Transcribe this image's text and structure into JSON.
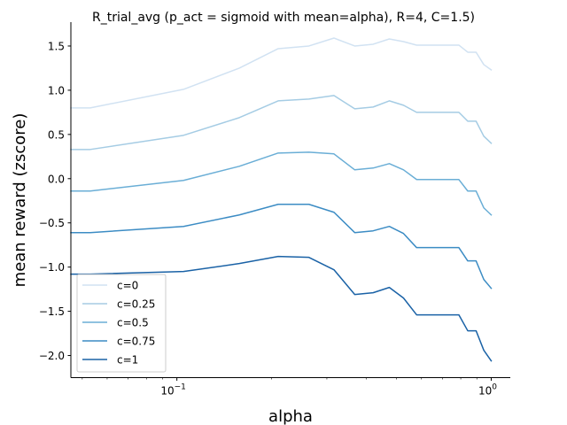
{
  "chart_data": {
    "type": "line",
    "title": "R_trial_avg (p_act = sigmoid with mean=alpha), R=4, C=1.5)",
    "xlabel": "alpha",
    "ylabel": "mean reward (zscore)",
    "xscale": "log",
    "xlim": [
      0.046,
      1.15
    ],
    "ylim": [
      -2.25,
      1.77
    ],
    "xticks": [
      {
        "value": 0.1,
        "base": "10",
        "exp": "−1"
      },
      {
        "value": 1,
        "base": "10",
        "exp": "0"
      }
    ],
    "yticks": [
      {
        "value": 1.5,
        "label": "1.5"
      },
      {
        "value": 1.0,
        "label": "1.0"
      },
      {
        "value": 0.5,
        "label": "0.5"
      },
      {
        "value": 0.0,
        "label": "0.0"
      },
      {
        "value": -0.5,
        "label": "−0.5"
      },
      {
        "value": -1.0,
        "label": "−1.0"
      },
      {
        "value": -1.5,
        "label": "−1.5"
      },
      {
        "value": -2.0,
        "label": "−2.0"
      }
    ],
    "x": [
      0.046,
      0.053,
      0.105,
      0.158,
      0.21,
      0.263,
      0.316,
      0.368,
      0.421,
      0.474,
      0.526,
      0.579,
      0.632,
      0.684,
      0.737,
      0.789,
      0.842,
      0.895,
      0.947,
      1.0
    ],
    "series": [
      {
        "name": "c=0",
        "color": "#d1e2f2",
        "values": [
          0.8,
          0.8,
          1.01,
          1.25,
          1.47,
          1.5,
          1.59,
          1.5,
          1.52,
          1.58,
          1.55,
          1.51,
          1.51,
          1.51,
          1.51,
          1.51,
          1.43,
          1.43,
          1.29,
          1.23
        ]
      },
      {
        "name": "c=0.25",
        "color": "#a5cce4",
        "values": [
          0.33,
          0.33,
          0.49,
          0.69,
          0.88,
          0.9,
          0.94,
          0.79,
          0.81,
          0.88,
          0.83,
          0.75,
          0.75,
          0.75,
          0.75,
          0.75,
          0.65,
          0.65,
          0.48,
          0.4
        ]
      },
      {
        "name": "c=0.5",
        "color": "#6aaed6",
        "values": [
          -0.14,
          -0.14,
          -0.02,
          0.14,
          0.29,
          0.3,
          0.28,
          0.1,
          0.12,
          0.17,
          0.1,
          -0.01,
          -0.01,
          -0.01,
          -0.01,
          -0.01,
          -0.14,
          -0.14,
          -0.33,
          -0.41
        ]
      },
      {
        "name": "c=0.75",
        "color": "#3c8cc4",
        "values": [
          -0.61,
          -0.61,
          -0.54,
          -0.41,
          -0.29,
          -0.29,
          -0.38,
          -0.61,
          -0.59,
          -0.54,
          -0.62,
          -0.78,
          -0.78,
          -0.78,
          -0.78,
          -0.78,
          -0.93,
          -0.93,
          -1.14,
          -1.24
        ]
      },
      {
        "name": "c=1",
        "color": "#1a62a6",
        "values": [
          -1.08,
          -1.08,
          -1.05,
          -0.96,
          -0.88,
          -0.89,
          -1.03,
          -1.31,
          -1.29,
          -1.23,
          -1.35,
          -1.54,
          -1.54,
          -1.54,
          -1.54,
          -1.54,
          -1.72,
          -1.72,
          -1.94,
          -2.06
        ]
      }
    ],
    "legend": "lower-left",
    "grid": false
  }
}
